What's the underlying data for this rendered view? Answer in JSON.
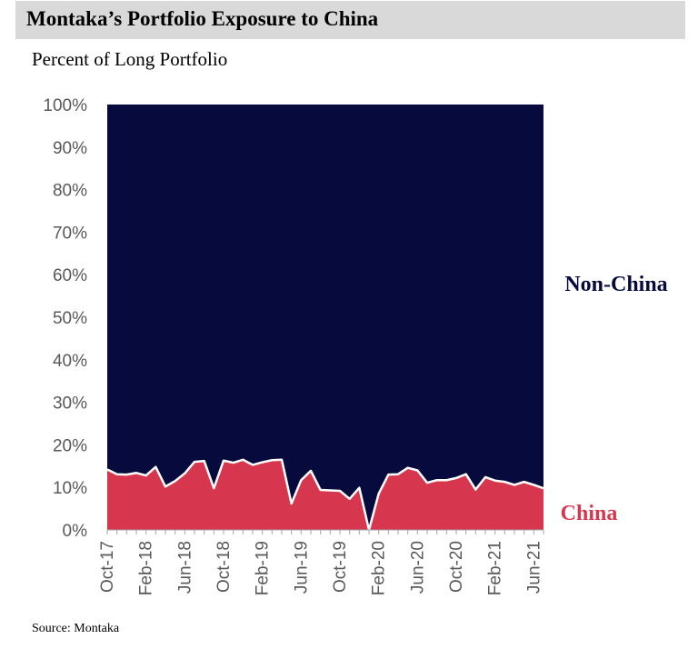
{
  "title": "Montaka’s Portfolio Exposure to China",
  "subtitle": "Percent of Long Portfolio",
  "source": "Source: Montaka",
  "colors": {
    "non_china": "#070a3d",
    "china": "#d6374e",
    "title_bar": "#d9d9d9",
    "axis_text": "#595959"
  },
  "chart_data": {
    "type": "area",
    "stacked": true,
    "percent_stacked": true,
    "ylim": [
      0,
      100
    ],
    "y_ticks": [
      "0%",
      "10%",
      "20%",
      "30%",
      "40%",
      "50%",
      "60%",
      "70%",
      "80%",
      "90%",
      "100%"
    ],
    "x_tick_labels": [
      "Oct-17",
      "Feb-18",
      "Jun-18",
      "Oct-18",
      "Feb-19",
      "Jun-19",
      "Oct-19",
      "Feb-20",
      "Jun-20",
      "Oct-20",
      "Feb-21",
      "Jun-21"
    ],
    "x_tick_month_index": [
      0,
      4,
      8,
      12,
      16,
      20,
      24,
      28,
      32,
      36,
      40,
      44
    ],
    "x_range_months": [
      0,
      45
    ],
    "series": [
      {
        "name": "China",
        "label": "China",
        "values": [
          14.2,
          13.1,
          13.0,
          13.4,
          12.8,
          14.8,
          10.2,
          11.5,
          13.3,
          16.0,
          16.2,
          9.8,
          16.3,
          15.8,
          16.5,
          15.3,
          15.9,
          16.4,
          16.5,
          6.2,
          11.7,
          13.9,
          9.4,
          9.3,
          9.2,
          7.3,
          9.9,
          0.0,
          8.5,
          13.0,
          13.1,
          14.6,
          14.0,
          11.1,
          11.7,
          11.7,
          12.2,
          13.1,
          9.5,
          12.4,
          11.6,
          11.3,
          10.6,
          11.3,
          10.6,
          9.8
        ]
      },
      {
        "name": "Non-China",
        "label": "Non-China"
      }
    ]
  }
}
